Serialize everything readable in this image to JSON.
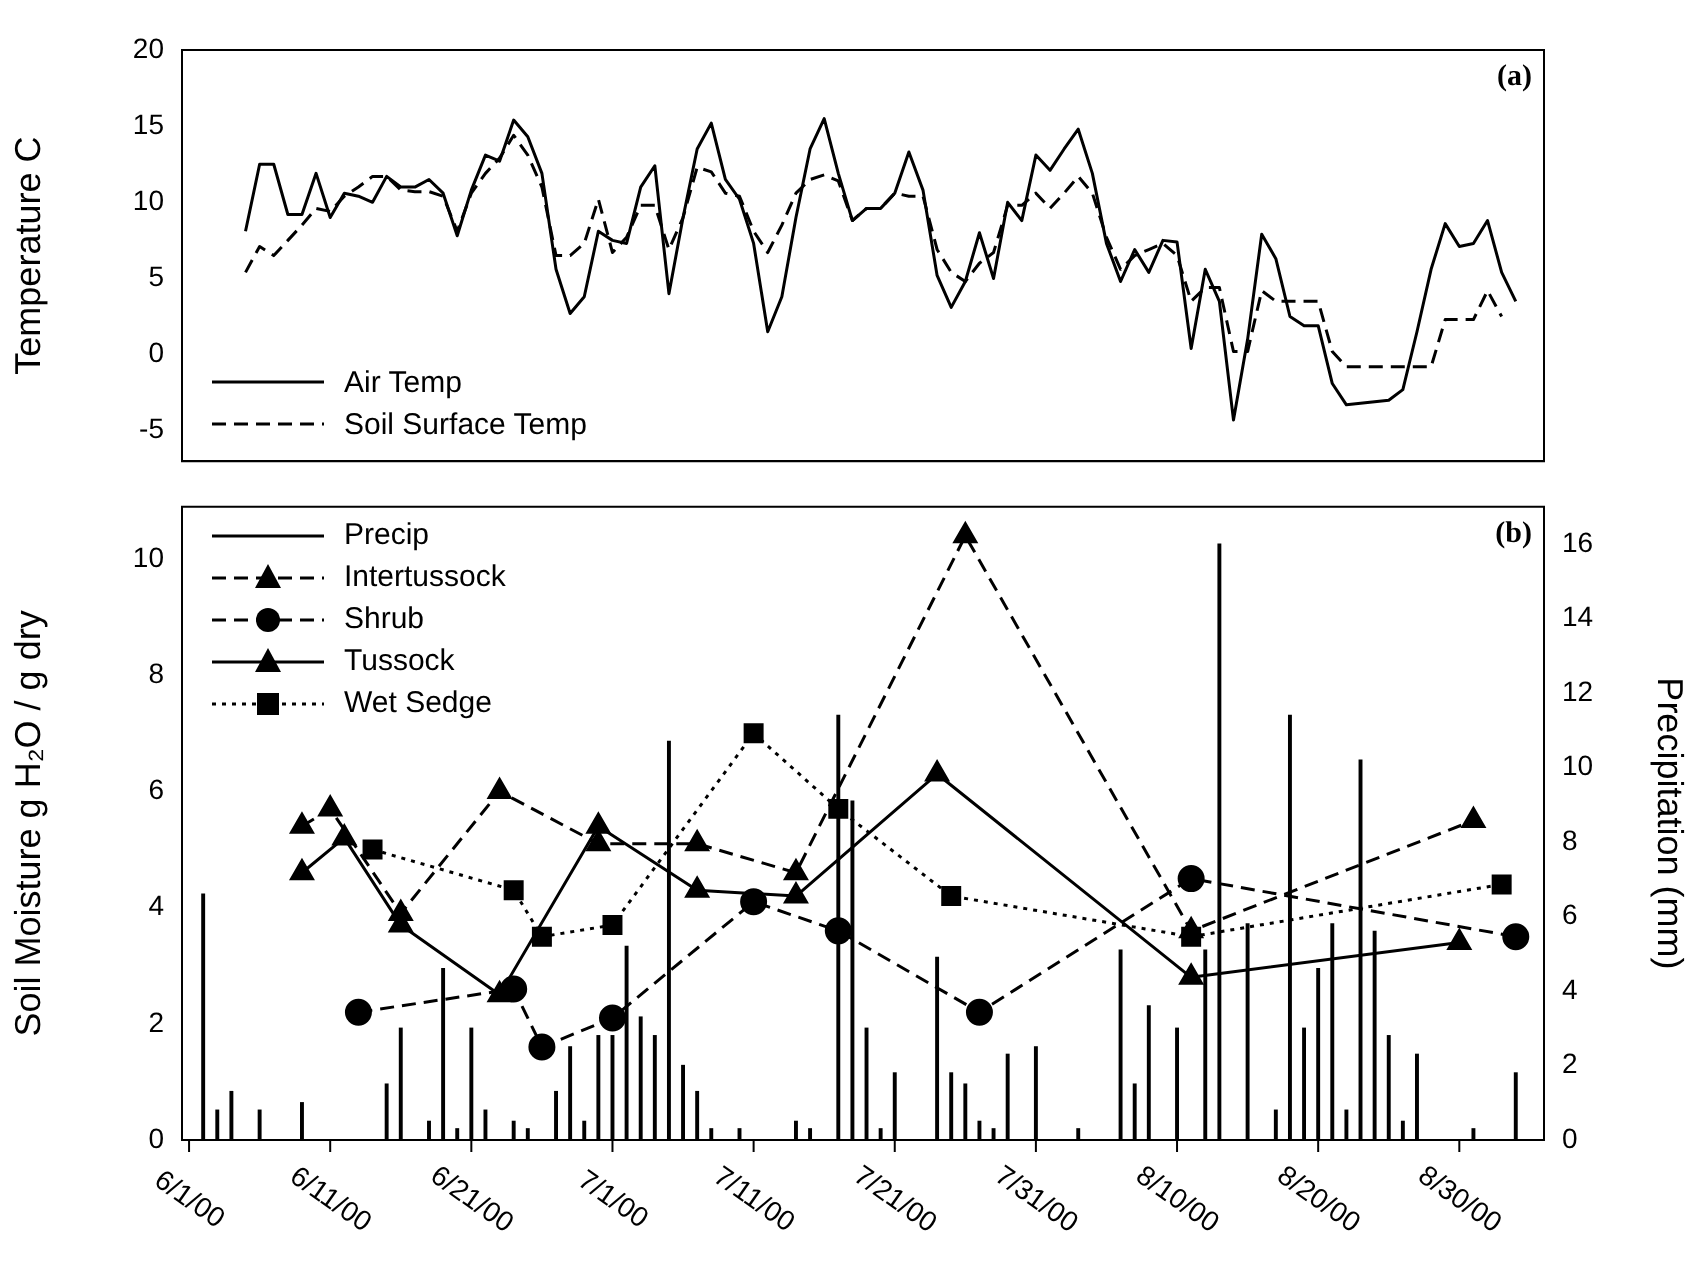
{
  "chart_data": [
    {
      "type": "line",
      "ylabel": "Temperature C",
      "annotations": [
        "(a)"
      ],
      "legend": "bottom left",
      "tick_labels": "y",
      "xlim": [
        "2000-05-31T12:00",
        "2000-09-05"
      ],
      "ylim": [
        -7,
        20
      ],
      "yticks": [
        -5,
        0,
        5,
        10,
        15,
        20
      ],
      "x": [
        "2000-06-05",
        "2000-06-06",
        "2000-06-07",
        "2000-06-08",
        "2000-06-09",
        "2000-06-10",
        "2000-06-11",
        "2000-06-12",
        "2000-06-13",
        "2000-06-14",
        "2000-06-15",
        "2000-06-16",
        "2000-06-17",
        "2000-06-18",
        "2000-06-19",
        "2000-06-20",
        "2000-06-21",
        "2000-06-22",
        "2000-06-23",
        "2000-06-24",
        "2000-06-25",
        "2000-06-26",
        "2000-06-27",
        "2000-06-28",
        "2000-06-29",
        "2000-06-30",
        "2000-07-01",
        "2000-07-02",
        "2000-07-03",
        "2000-07-04",
        "2000-07-05",
        "2000-07-06",
        "2000-07-07",
        "2000-07-08",
        "2000-07-09",
        "2000-07-10",
        "2000-07-11",
        "2000-07-12",
        "2000-07-13",
        "2000-07-14",
        "2000-07-15",
        "2000-07-16",
        "2000-07-17",
        "2000-07-18",
        "2000-07-19",
        "2000-07-20",
        "2000-07-21",
        "2000-07-22",
        "2000-07-23",
        "2000-07-24",
        "2000-07-25",
        "2000-07-26",
        "2000-07-27",
        "2000-07-28",
        "2000-07-29",
        "2000-07-30",
        "2000-07-31",
        "2000-08-01",
        "2000-08-02",
        "2000-08-03",
        "2000-08-04",
        "2000-08-05",
        "2000-08-06",
        "2000-08-07",
        "2000-08-08",
        "2000-08-09",
        "2000-08-10",
        "2000-08-11",
        "2000-08-12",
        "2000-08-13",
        "2000-08-14",
        "2000-08-15",
        "2000-08-16",
        "2000-08-17",
        "2000-08-18",
        "2000-08-19",
        "2000-08-20",
        "2000-08-21",
        "2000-08-22",
        "2000-08-23",
        "2000-08-25",
        "2000-08-26",
        "2000-08-27",
        "2000-08-28",
        "2000-08-29",
        "2000-08-30",
        "2000-08-31",
        "2000-09-01",
        "2000-09-02",
        "2000-09-03"
      ],
      "series": [
        {
          "name": "Air Temp",
          "color": "#000000",
          "line_style": "solid",
          "values": [
            8.1,
            12.5,
            12.5,
            9.2,
            9.2,
            11.9,
            9.0,
            10.6,
            10.4,
            10.0,
            11.7,
            11.0,
            11.0,
            11.5,
            10.6,
            7.8,
            10.8,
            13.1,
            12.7,
            15.4,
            14.3,
            11.9,
            5.6,
            2.7,
            3.8,
            8.1,
            7.5,
            7.3,
            11.0,
            12.4,
            4.0,
            9.0,
            13.5,
            15.2,
            11.5,
            10.2,
            7.3,
            1.5,
            3.8,
            9.0,
            13.5,
            15.5,
            11.9,
            8.8,
            9.6,
            9.6,
            10.6,
            13.3,
            10.8,
            5.2,
            3.1,
            4.8,
            8.0,
            5.0,
            10.0,
            8.8,
            13.1,
            12.1,
            13.5,
            14.8,
            11.9,
            7.3,
            4.8,
            6.9,
            5.4,
            7.5,
            7.4,
            0.4,
            5.6,
            3.5,
            -4.3,
            1.0,
            7.9,
            6.3,
            2.5,
            1.9,
            1.9,
            -1.9,
            -3.3,
            -3.2,
            -3.0,
            -2.3,
            1.5,
            5.6,
            8.6,
            7.1,
            7.3,
            8.8,
            5.4,
            3.5
          ]
        },
        {
          "name": "Soil Surface Temp",
          "color": "#000000",
          "line_style": "dashed",
          "values": [
            5.4,
            7.1,
            6.5,
            7.5,
            8.5,
            9.6,
            9.4,
            10.4,
            11.0,
            11.7,
            11.7,
            10.8,
            10.7,
            10.7,
            10.4,
            8.1,
            10.6,
            11.9,
            12.9,
            14.4,
            13.1,
            11.0,
            6.5,
            6.5,
            7.3,
            10.2,
            6.7,
            7.7,
            9.8,
            9.8,
            6.9,
            9.0,
            12.3,
            12.0,
            10.6,
            10.4,
            8.1,
            6.7,
            8.5,
            10.6,
            11.5,
            11.8,
            11.4,
            8.8,
            9.6,
            9.6,
            10.6,
            10.4,
            10.4,
            6.9,
            5.4,
            4.8,
            6.0,
            6.7,
            9.8,
            9.8,
            10.6,
            9.6,
            10.6,
            11.7,
            10.6,
            7.7,
            5.6,
            6.5,
            6.9,
            7.3,
            6.5,
            3.5,
            4.4,
            4.4,
            0.2,
            0.2,
            4.2,
            3.5,
            3.5,
            3.5,
            3.5,
            0.2,
            -0.8,
            -0.8,
            -0.8,
            -0.8,
            -0.8,
            -0.8,
            2.3,
            2.3,
            2.3,
            4.2,
            2.5,
            null
          ]
        }
      ]
    },
    {
      "type": "line",
      "ylabel": "Soil Moisture g H₂O / g dry",
      "y2label": "Precipitation (mm)",
      "annotations": [
        "(b)"
      ],
      "legend": "top left",
      "xlim": [
        "2000-05-31T12:00",
        "2000-09-05"
      ],
      "xticks": [
        {
          "value": "2000-06-01",
          "label": "6/1/00"
        },
        {
          "value": "2000-06-11",
          "label": "6/11/00"
        },
        {
          "value": "2000-06-21",
          "label": "6/21/00"
        },
        {
          "value": "2000-07-01",
          "label": "7/1/00"
        },
        {
          "value": "2000-07-11",
          "label": "7/11/00"
        },
        {
          "value": "2000-07-21",
          "label": "7/21/00"
        },
        {
          "value": "2000-07-31",
          "label": "7/31/00"
        },
        {
          "value": "2000-08-10",
          "label": "8/10/00"
        },
        {
          "value": "2000-08-20",
          "label": "8/20/00"
        },
        {
          "value": "2000-08-30",
          "label": "8/30/00"
        }
      ],
      "ylim": [
        0,
        10.9
      ],
      "yticks": [
        0,
        2,
        4,
        6,
        8,
        10
      ],
      "y2lim": [
        0,
        17
      ],
      "y2ticks": [
        0,
        2,
        4,
        6,
        8,
        10,
        12,
        14,
        16
      ],
      "series": [
        {
          "name": "Precip",
          "type": "bar",
          "axis": "y2",
          "color": "#000000",
          "x": [
            "2000-06-02",
            "2000-06-03",
            "2000-06-04",
            "2000-06-06",
            "2000-06-09",
            "2000-06-15",
            "2000-06-16",
            "2000-06-18",
            "2000-06-19",
            "2000-06-20",
            "2000-06-21",
            "2000-06-22",
            "2000-06-24",
            "2000-06-25",
            "2000-06-27",
            "2000-06-28",
            "2000-06-29",
            "2000-06-30",
            "2000-07-01",
            "2000-07-02",
            "2000-07-03",
            "2000-07-04",
            "2000-07-05",
            "2000-07-06",
            "2000-07-07",
            "2000-07-08",
            "2000-07-10",
            "2000-07-14",
            "2000-07-15",
            "2000-07-17",
            "2000-07-18",
            "2000-07-19",
            "2000-07-20",
            "2000-07-21",
            "2000-07-24",
            "2000-07-25",
            "2000-07-26",
            "2000-07-27",
            "2000-07-28",
            "2000-07-29",
            "2000-07-31",
            "2000-08-03",
            "2000-08-06",
            "2000-08-07",
            "2000-08-08",
            "2000-08-10",
            "2000-08-12",
            "2000-08-13",
            "2000-08-15",
            "2000-08-17",
            "2000-08-18",
            "2000-08-19",
            "2000-08-20",
            "2000-08-21",
            "2000-08-22",
            "2000-08-23",
            "2000-08-24",
            "2000-08-25",
            "2000-08-26",
            "2000-08-27",
            "2000-08-31",
            "2000-09-03"
          ],
          "values": [
            6.6,
            0.8,
            1.3,
            0.8,
            1.0,
            1.5,
            3.0,
            0.5,
            4.6,
            0.3,
            3.0,
            0.8,
            0.5,
            0.3,
            1.3,
            2.5,
            0.5,
            2.8,
            2.8,
            5.2,
            3.3,
            2.8,
            10.7,
            2.0,
            1.3,
            0.3,
            0.3,
            0.5,
            0.3,
            11.4,
            9.1,
            3.0,
            0.3,
            1.8,
            4.9,
            1.8,
            1.5,
            0.5,
            0.3,
            2.3,
            2.5,
            0.3,
            5.1,
            1.5,
            3.6,
            3.0,
            5.1,
            16.0,
            5.8,
            0.8,
            11.4,
            3.0,
            4.6,
            5.8,
            0.8,
            10.2,
            5.6,
            2.8,
            0.5,
            2.3,
            0.3,
            1.8
          ]
        },
        {
          "name": "Intertussock",
          "color": "#000000",
          "marker": "triangle",
          "line_style": "dashed",
          "x": [
            "2000-06-09",
            "2000-06-11",
            "2000-06-16",
            "2000-06-23",
            "2000-06-30",
            "2000-07-07",
            "2000-07-14",
            "2000-07-26",
            "2000-08-11",
            "2000-08-31"
          ],
          "values": [
            5.4,
            5.7,
            3.9,
            6.0,
            5.1,
            5.1,
            4.6,
            10.4,
            3.6,
            5.5
          ]
        },
        {
          "name": "Shrub",
          "color": "#000000",
          "marker": "circle",
          "line_style": "dashed",
          "x": [
            "2000-06-13",
            "2000-06-24",
            "2000-06-26",
            "2000-07-01",
            "2000-07-11",
            "2000-07-17",
            "2000-07-27",
            "2000-08-11",
            "2000-09-03"
          ],
          "values": [
            2.2,
            2.6,
            1.6,
            2.1,
            4.1,
            3.6,
            2.2,
            4.5,
            3.5
          ]
        },
        {
          "name": "Tussock",
          "color": "#000000",
          "marker": "triangle",
          "line_style": "solid",
          "x": [
            "2000-06-09",
            "2000-06-12",
            "2000-06-16",
            "2000-06-23",
            "2000-06-30",
            "2000-07-07",
            "2000-07-14",
            "2000-07-24",
            "2000-08-11",
            "2000-08-30"
          ],
          "values": [
            4.6,
            5.2,
            3.7,
            2.5,
            5.4,
            4.3,
            4.2,
            6.3,
            2.8,
            3.4
          ]
        },
        {
          "name": "Wet Sedge",
          "color": "#000000",
          "marker": "square",
          "line_style": "dotted",
          "x": [
            "2000-06-14",
            "2000-06-24",
            "2000-06-26",
            "2000-07-01",
            "2000-07-11",
            "2000-07-17",
            "2000-07-25",
            "2000-08-11",
            "2000-09-02"
          ],
          "values": [
            5.0,
            4.3,
            3.5,
            3.7,
            7.0,
            5.7,
            4.2,
            3.5,
            4.4
          ]
        }
      ]
    }
  ]
}
